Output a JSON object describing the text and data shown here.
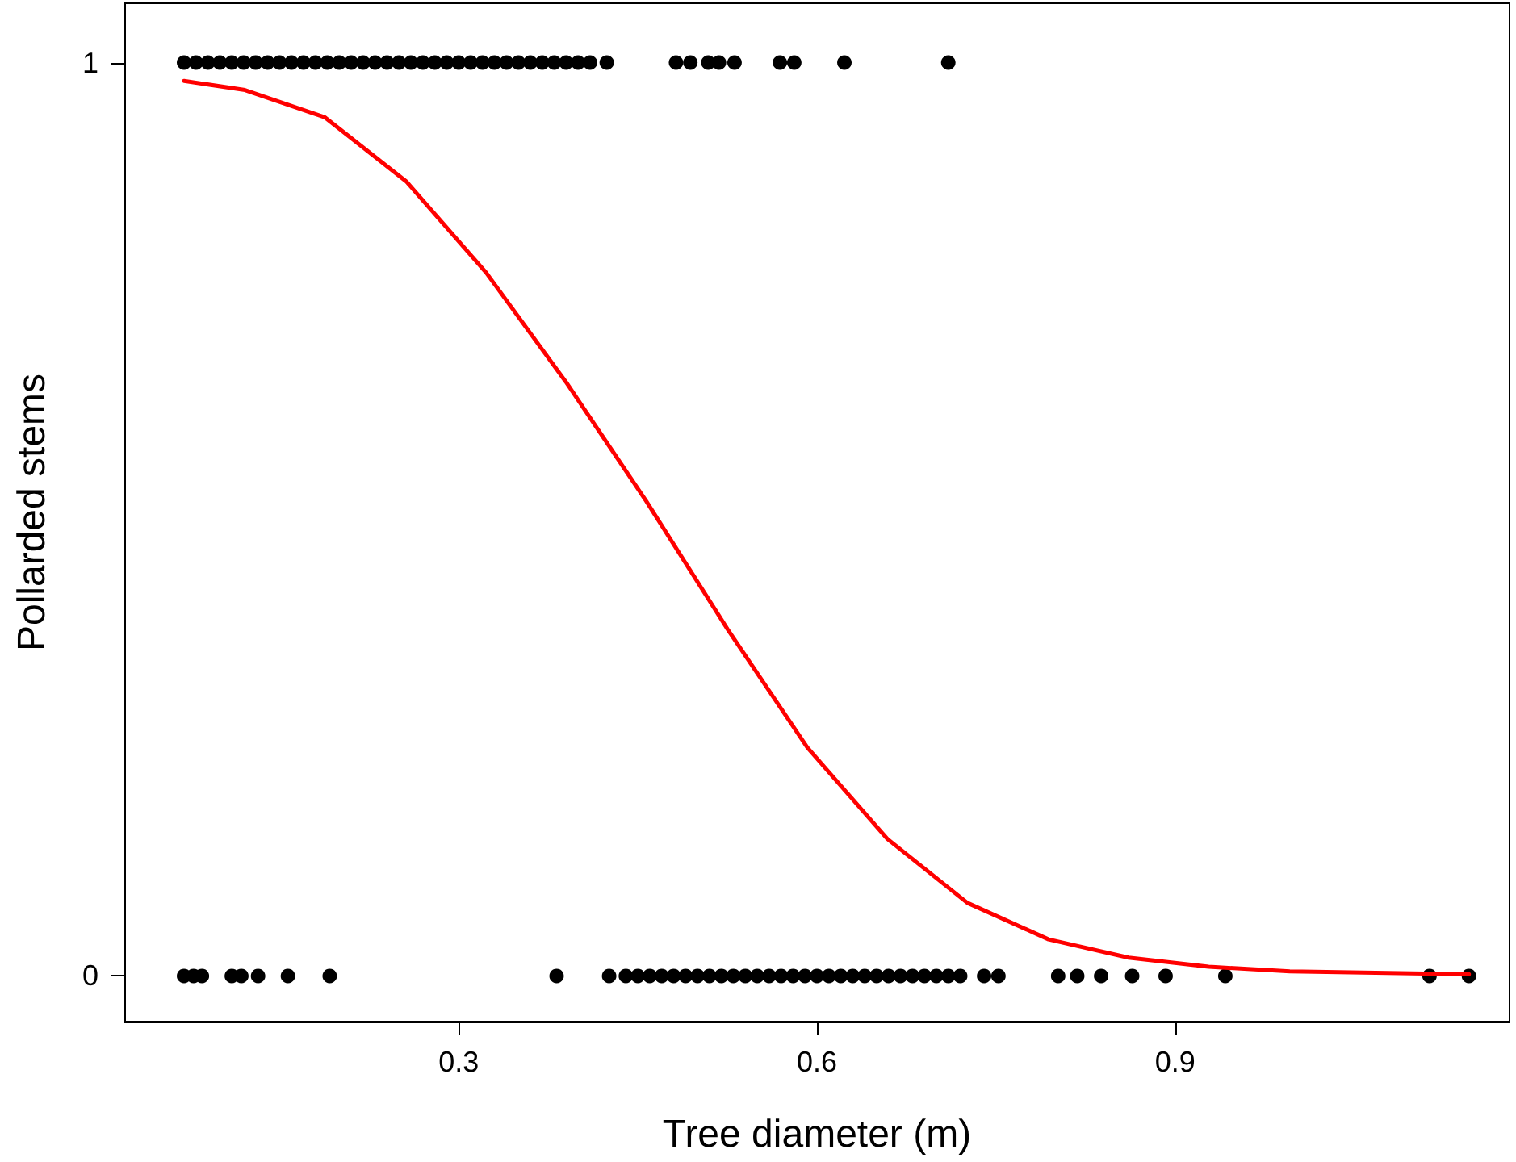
{
  "chart_data": {
    "type": "scatter",
    "xlabel": "Tree diameter (m)",
    "ylabel": "Pollarded stems",
    "xlim": [
      0.02,
      1.18
    ],
    "ylim": [
      -0.05,
      1.065
    ],
    "xticks": [
      0.3,
      0.6,
      0.9
    ],
    "yticks": [
      0,
      1
    ],
    "grid": false,
    "marker": "circle",
    "series": [
      {
        "color": "#000000",
        "x": [
          0.07,
          0.08,
          0.09,
          0.1,
          0.11,
          0.12,
          0.13,
          0.14,
          0.15,
          0.16,
          0.17,
          0.18,
          0.19,
          0.2,
          0.21,
          0.22,
          0.23,
          0.24,
          0.25,
          0.26,
          0.27,
          0.28,
          0.29,
          0.3,
          0.31,
          0.32,
          0.33,
          0.34,
          0.35,
          0.36,
          0.37,
          0.38,
          0.39,
          0.4,
          0.41,
          0.424,
          0.482,
          0.494,
          0.509,
          0.518,
          0.531,
          0.569,
          0.581,
          0.623,
          0.71
        ],
        "values": [
          1,
          1,
          1,
          1,
          1,
          1,
          1,
          1,
          1,
          1,
          1,
          1,
          1,
          1,
          1,
          1,
          1,
          1,
          1,
          1,
          1,
          1,
          1,
          1,
          1,
          1,
          1,
          1,
          1,
          1,
          1,
          1,
          1,
          1,
          1,
          1,
          1,
          1,
          1,
          1,
          1,
          1,
          1,
          1,
          1
        ]
      },
      {
        "color": "#000000",
        "x": [
          0.07,
          0.078,
          0.085,
          0.11,
          0.118,
          0.132,
          0.157,
          0.192,
          0.382,
          0.426,
          0.44,
          0.45,
          0.46,
          0.47,
          0.48,
          0.49,
          0.5,
          0.51,
          0.52,
          0.53,
          0.54,
          0.55,
          0.56,
          0.57,
          0.58,
          0.59,
          0.6,
          0.61,
          0.62,
          0.63,
          0.64,
          0.65,
          0.66,
          0.67,
          0.68,
          0.69,
          0.7,
          0.71,
          0.72,
          0.74,
          0.752,
          0.802,
          0.818,
          0.838,
          0.864,
          0.892,
          0.942,
          1.113,
          1.146
        ],
        "values": [
          0,
          0,
          0,
          0,
          0,
          0,
          0,
          0,
          0,
          0,
          0,
          0,
          0,
          0,
          0,
          0,
          0,
          0,
          0,
          0,
          0,
          0,
          0,
          0,
          0,
          0,
          0,
          0,
          0,
          0,
          0,
          0,
          0,
          0,
          0,
          0,
          0,
          0,
          0,
          0,
          0,
          0,
          0,
          0,
          0,
          0,
          0,
          0,
          0
        ]
      },
      {
        "type": "line",
        "color": "#ff0000",
        "marker": "none",
        "line_style": "solid",
        "x": [
          0.07,
          0.121,
          0.188,
          0.256,
          0.323,
          0.39,
          0.457,
          0.525,
          0.592,
          0.659,
          0.726,
          0.794,
          0.861,
          0.928,
          0.996,
          1.13,
          1.146
        ],
        "values": [
          0.98,
          0.97,
          0.94,
          0.87,
          0.77,
          0.65,
          0.52,
          0.38,
          0.25,
          0.15,
          0.08,
          0.04,
          0.02,
          0.01,
          0.005,
          0.002,
          0.002
        ]
      }
    ]
  }
}
